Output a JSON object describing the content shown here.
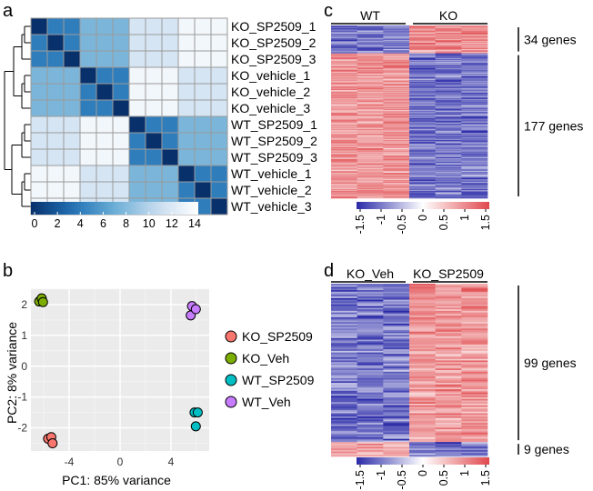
{
  "figure": {
    "panels": {
      "a": "a",
      "b": "b",
      "c": "c",
      "d": "d"
    }
  },
  "chart_data": [
    {
      "id": "a",
      "type": "heatmap",
      "title": "",
      "row_labels": [
        "KO_SP2509_1",
        "KO_SP2509_2",
        "KO_SP2509_3",
        "KO_vehicle_1",
        "KO_vehicle_2",
        "KO_vehicle_3",
        "WT_SP2509_1",
        "WT_SP2509_2",
        "WT_SP2509_3",
        "WT_vehicle_1",
        "WT_vehicle_2",
        "WT_vehicle_3"
      ],
      "groups": [
        0,
        0,
        0,
        1,
        1,
        1,
        2,
        2,
        2,
        3,
        3,
        3
      ],
      "colorbar_ticks": [
        "0",
        "2",
        "4",
        "6",
        "8",
        "10",
        "12",
        "14"
      ],
      "colorbar_range": [
        0,
        14
      ],
      "colors": {
        "low": "#08306b",
        "high": "#ffffff"
      }
    },
    {
      "id": "b",
      "type": "scatter",
      "xlabel": "PC1: 85% variance",
      "ylabel": "PC2: 8% variance",
      "xticks": [
        "-4",
        "0",
        "4"
      ],
      "xtick_values": [
        -4,
        0,
        4
      ],
      "yticks": [
        "2",
        "1",
        "0",
        "-1",
        "-2"
      ],
      "ytick_values": [
        2,
        1,
        0,
        -1,
        -2
      ],
      "xlim": [
        -7,
        7
      ],
      "ylim": [
        -2.75,
        2.5
      ],
      "series": [
        {
          "name": "KO_SP2509",
          "color": "#f8766d",
          "points": [
            [
              -5.65,
              -2.35
            ],
            [
              -5.4,
              -2.3
            ],
            [
              -5.3,
              -2.5
            ]
          ]
        },
        {
          "name": "KO_Veh",
          "color": "#7cae00",
          "points": [
            [
              -6.35,
              2.1
            ],
            [
              -6.15,
              2.2
            ],
            [
              -6.05,
              2.08
            ]
          ]
        },
        {
          "name": "WT_SP2509",
          "color": "#00bfc4",
          "points": [
            [
              5.85,
              -1.5
            ],
            [
              6.1,
              -1.5
            ],
            [
              5.95,
              -1.95
            ]
          ]
        },
        {
          "name": "WT_Veh",
          "color": "#c77cff",
          "points": [
            [
              5.55,
              1.65
            ],
            [
              5.65,
              1.95
            ],
            [
              5.95,
              1.85
            ]
          ]
        }
      ]
    },
    {
      "id": "c",
      "type": "heatmap",
      "columns": [
        "WT",
        "KO"
      ],
      "row_groups": [
        {
          "label": "34 genes",
          "count": 34
        },
        {
          "label": "177 genes",
          "count": 177
        }
      ],
      "colorbar_ticks": [
        "-1.5",
        "-1",
        "-0.5",
        "0",
        "0.5",
        "1",
        "1.5"
      ],
      "colorbar_range": [
        -1.5,
        1.5
      ],
      "colors": {
        "low": "#1a1a9e",
        "mid": "#ffffff",
        "high": "#d7262c"
      }
    },
    {
      "id": "d",
      "type": "heatmap",
      "columns": [
        "KO_Veh",
        "KO_SP2509"
      ],
      "row_groups": [
        {
          "label": "99 genes",
          "count": 99
        },
        {
          "label": "9 genes",
          "count": 9
        }
      ],
      "colorbar_ticks": [
        "-1.5",
        "-1",
        "-0.5",
        "0",
        "0.5",
        "1",
        "1.5"
      ],
      "colorbar_range": [
        -1.5,
        1.5
      ],
      "colors": {
        "low": "#1a1a9e",
        "mid": "#ffffff",
        "high": "#d7262c"
      }
    }
  ]
}
